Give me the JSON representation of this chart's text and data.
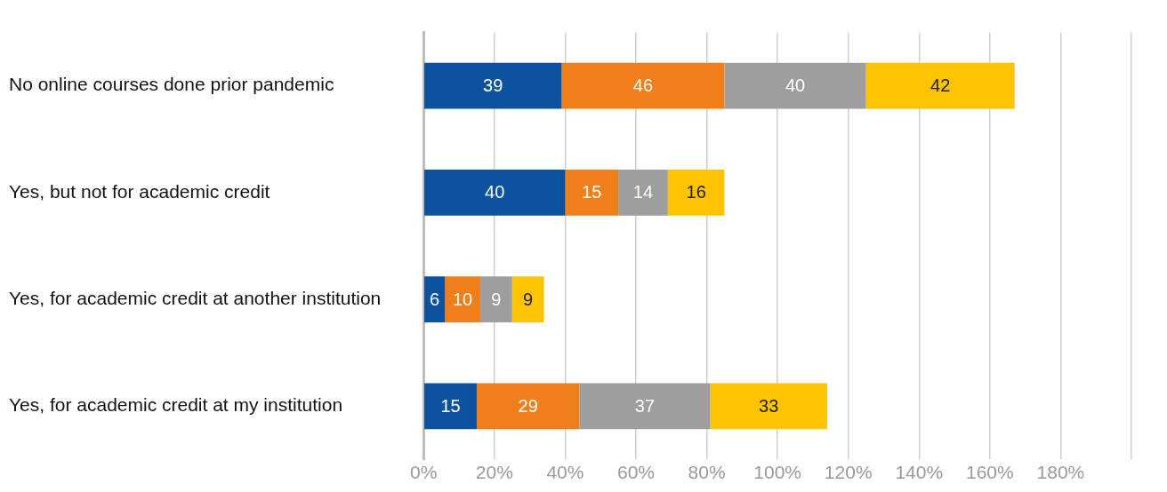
{
  "chart_data": {
    "type": "bar",
    "orientation": "horizontal",
    "stacked": true,
    "data_labels": true,
    "grid": "x",
    "legend": false,
    "categories": [
      "No online courses done prior pandemic",
      "Yes, but not for academic credit",
      "Yes, for academic credit at another institution",
      "Yes, for academic credit at my institution"
    ],
    "series": [
      {
        "color": "#0c529e",
        "values": [
          39,
          40,
          6,
          15
        ]
      },
      {
        "color": "#ef7f1a",
        "values": [
          46,
          15,
          10,
          29
        ]
      },
      {
        "color": "#9d9e9d",
        "values": [
          40,
          14,
          9,
          37
        ]
      },
      {
        "color": "#fbc300",
        "values": [
          42,
          16,
          9,
          33
        ]
      }
    ],
    "xlim": [
      0,
      200
    ],
    "xticks": [
      {
        "value": 0,
        "label": "0%"
      },
      {
        "value": 20,
        "label": "20%"
      },
      {
        "value": 40,
        "label": "40%"
      },
      {
        "value": 60,
        "label": "60%"
      },
      {
        "value": 80,
        "label": "80%"
      },
      {
        "value": 100,
        "label": "100%"
      },
      {
        "value": 120,
        "label": "120%"
      },
      {
        "value": 140,
        "label": "140%"
      },
      {
        "value": 160,
        "label": "160%"
      },
      {
        "value": 180,
        "label": "180%"
      },
      {
        "value": 200,
        "label": null
      }
    ]
  }
}
